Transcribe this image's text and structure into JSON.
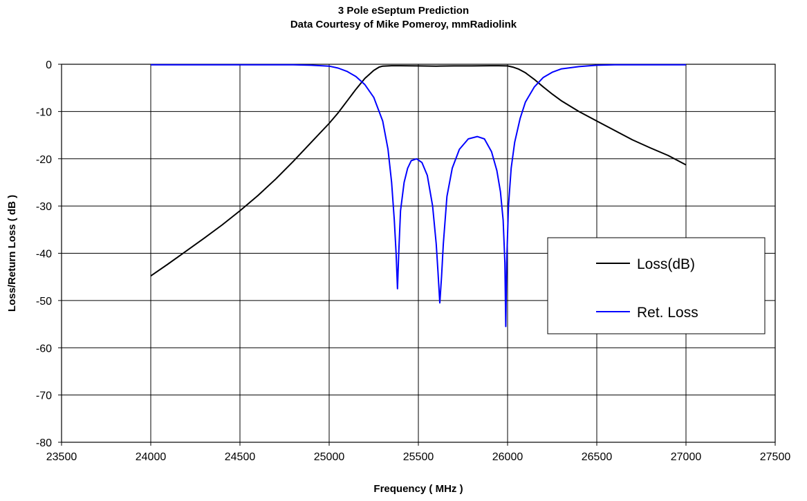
{
  "chart_data": {
    "type": "line",
    "title": "3 Pole eSeptum Prediction",
    "subtitle": "Data Courtesy of Mike Pomeroy, mmRadiolink",
    "xlabel": "Frequency ( MHz )",
    "ylabel": "Loss/Return Loss ( dB )",
    "xlim": [
      23500,
      27500
    ],
    "ylim": [
      -80,
      0
    ],
    "xticks": [
      23500,
      24000,
      24500,
      25000,
      25500,
      26000,
      26500,
      27000,
      27500
    ],
    "yticks": [
      0,
      -10,
      -20,
      -30,
      -40,
      -50,
      -60,
      -70,
      -80
    ],
    "grid": true,
    "legend_position": "right",
    "series": [
      {
        "name": "Loss(dB)",
        "color": "#000000",
        "x": [
          24000,
          24100,
          24200,
          24300,
          24400,
          24500,
          24600,
          24700,
          24800,
          24900,
          25000,
          25050,
          25100,
          25150,
          25200,
          25250,
          25280,
          25300,
          25350,
          25400,
          25500,
          25600,
          25700,
          25800,
          25900,
          25950,
          26000,
          26030,
          26060,
          26100,
          26150,
          26200,
          26250,
          26300,
          26400,
          26500,
          26600,
          26700,
          26800,
          26900,
          27000
        ],
        "y": [
          -44.8,
          -42.2,
          -39.5,
          -36.8,
          -34.0,
          -31.0,
          -27.8,
          -24.3,
          -20.5,
          -16.5,
          -12.5,
          -10.3,
          -7.8,
          -5.3,
          -3.0,
          -1.3,
          -0.6,
          -0.4,
          -0.3,
          -0.3,
          -0.35,
          -0.4,
          -0.35,
          -0.35,
          -0.3,
          -0.3,
          -0.35,
          -0.6,
          -1.0,
          -1.8,
          -3.2,
          -4.8,
          -6.3,
          -7.7,
          -10.0,
          -12.0,
          -14.0,
          -16.0,
          -17.7,
          -19.3,
          -21.3
        ]
      },
      {
        "name": "Ret. Loss",
        "color": "#0000ff",
        "x": [
          24000,
          24500,
          24800,
          24900,
          25000,
          25050,
          25100,
          25150,
          25200,
          25250,
          25300,
          25330,
          25350,
          25365,
          25375,
          25383,
          25390,
          25400,
          25420,
          25440,
          25460,
          25490,
          25520,
          25550,
          25580,
          25600,
          25610,
          25620,
          25630,
          25640,
          25660,
          25690,
          25730,
          25780,
          25830,
          25870,
          25910,
          25940,
          25960,
          25975,
          25985,
          25990,
          25995,
          26005,
          26020,
          26040,
          26070,
          26100,
          26150,
          26200,
          26250,
          26300,
          26400,
          26500,
          26600,
          26800,
          27000
        ],
        "y": [
          -0.1,
          -0.1,
          -0.1,
          -0.2,
          -0.4,
          -0.8,
          -1.5,
          -2.6,
          -4.3,
          -7.0,
          -12.0,
          -18.0,
          -25.0,
          -33.0,
          -40.0,
          -47.5,
          -40.0,
          -31.0,
          -25.0,
          -22.0,
          -20.4,
          -20.0,
          -20.8,
          -23.5,
          -30.0,
          -38.0,
          -44.0,
          -50.5,
          -45.0,
          -38.0,
          -28.0,
          -22.0,
          -18.0,
          -15.8,
          -15.3,
          -15.8,
          -18.5,
          -22.5,
          -27.0,
          -33.0,
          -42.0,
          -55.5,
          -42.0,
          -30.0,
          -22.0,
          -16.5,
          -11.5,
          -8.0,
          -4.8,
          -2.8,
          -1.7,
          -1.0,
          -0.5,
          -0.2,
          -0.1,
          -0.1,
          -0.1
        ]
      }
    ]
  }
}
